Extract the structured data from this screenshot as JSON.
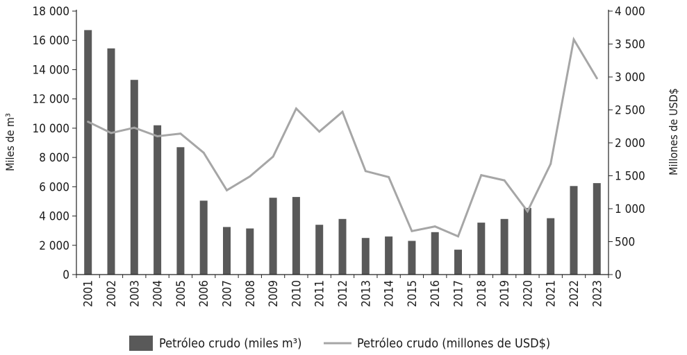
{
  "chart_data": {
    "type": "bar",
    "categories": [
      "2001",
      "2002",
      "2003",
      "2004",
      "2005",
      "2006",
      "2007",
      "2008",
      "2009",
      "2010",
      "2011",
      "2012",
      "2013",
      "2014",
      "2015",
      "2016",
      "2017",
      "2018",
      "2019",
      "2020",
      "2021",
      "2022",
      "2023"
    ],
    "series": [
      {
        "name": "Petróleo crudo (miles m³)",
        "type": "bar",
        "axis": "left",
        "color": "#595959",
        "values": [
          16700,
          15450,
          13300,
          10200,
          8700,
          5050,
          3250,
          3150,
          5250,
          5300,
          3400,
          3800,
          2500,
          2600,
          2300,
          2900,
          1700,
          3550,
          3800,
          4550,
          3850,
          6050,
          6250
        ]
      },
      {
        "name": "Petróleo crudo (millones de USD$)",
        "type": "line",
        "axis": "right",
        "color": "#a6a6a6",
        "values": [
          2320,
          2150,
          2230,
          2100,
          2140,
          1850,
          1280,
          1490,
          1790,
          2520,
          2170,
          2470,
          1570,
          1480,
          660,
          730,
          580,
          1510,
          1430,
          960,
          1680,
          3570,
          2980
        ]
      }
    ],
    "y_left": {
      "label": "Miles de m³",
      "ylim": [
        0,
        18000
      ],
      "ticks": [
        0,
        2000,
        4000,
        6000,
        8000,
        10000,
        12000,
        14000,
        16000,
        18000
      ],
      "tick_labels": [
        "0",
        "2 000",
        "4 000",
        "6 000",
        "8 000",
        "10 000",
        "12 000",
        "14 000",
        "16 000",
        "18 000"
      ]
    },
    "y_right": {
      "label": "Millones de USD$",
      "ylim": [
        0,
        4000
      ],
      "ticks": [
        0,
        500,
        1000,
        1500,
        2000,
        2500,
        3000,
        3500,
        4000
      ],
      "tick_labels": [
        "0",
        "500",
        "1 000",
        "1 500",
        "2 000",
        "2 500",
        "3 000",
        "3 500",
        "4 000"
      ]
    },
    "grid": false,
    "legend": {
      "position": "bottom",
      "entries": [
        "Petróleo crudo (miles m³)",
        "Petróleo crudo (millones de USD$)"
      ]
    }
  }
}
